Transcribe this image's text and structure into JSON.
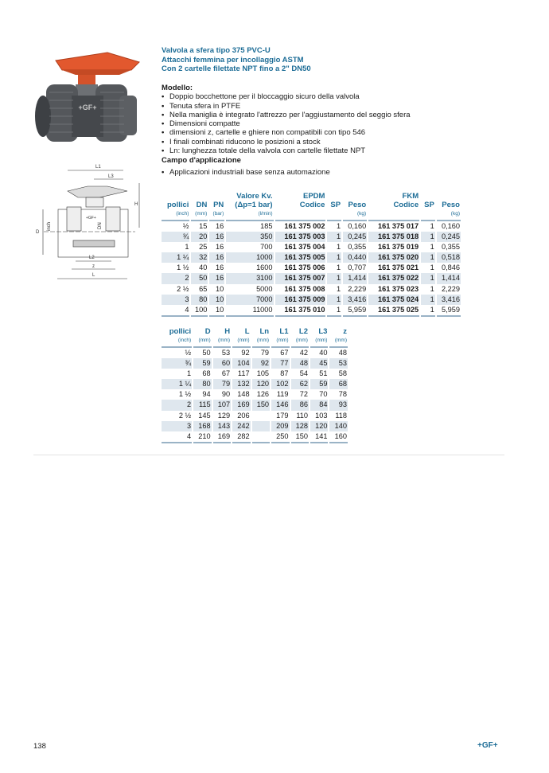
{
  "header": {
    "title_lines": [
      "Valvola a sfera tipo 375 PVC-U",
      "Attacchi femmina per incollaggio ASTM",
      "Con 2 cartelle filettate NPT fino a 2\" DN50"
    ]
  },
  "model": {
    "heading": "Modello:",
    "bullets": [
      "Doppio bocchettone per il bloccaggio sicuro della valvola",
      "Tenuta sfera in PTFE",
      "Nella maniglia è integrato l'attrezzo per l'aggiustamento del seggio sfera",
      "Dimensioni compatte",
      "dimensioni z, cartelle e ghiere non compatibili con tipo 546",
      "I finali combinati riducono le posizioni a stock",
      "Ln: lunghezza totale della valvola con cartelle filettate NPT"
    ]
  },
  "application": {
    "heading": "Campo d'applicazione",
    "bullets": [
      "Applicazioni industriali base senza automazione"
    ]
  },
  "drawing": {
    "labels": {
      "L1": "L1",
      "L3": "L3",
      "H": "H",
      "D": "D",
      "inch": "inch",
      "DN": "DN",
      "L2": "L2",
      "z": "z",
      "L": "L"
    },
    "logo_text": "+GF+"
  },
  "table1": {
    "headers": [
      {
        "label": "pollici",
        "unit": "(inch)"
      },
      {
        "label": "DN",
        "unit": "(mm)"
      },
      {
        "label": "PN",
        "unit": "(bar)"
      },
      {
        "label": "Valore Kv.",
        "label2": "(Δp=1 bar)",
        "unit": "(l/min)"
      },
      {
        "label": "EPDM",
        "label2": "Codice",
        "unit": ""
      },
      {
        "label": "SP",
        "unit": ""
      },
      {
        "label": "Peso",
        "unit": "(kg)"
      },
      {
        "label": "FKM",
        "label2": "Codice",
        "unit": ""
      },
      {
        "label": "SP",
        "unit": ""
      },
      {
        "label": "Peso",
        "unit": "(kg)"
      }
    ],
    "rows": [
      [
        "½",
        "15",
        "16",
        "185",
        "161 375 002",
        "1",
        "0,160",
        "161 375 017",
        "1",
        "0,160"
      ],
      [
        "¾",
        "20",
        "16",
        "350",
        "161 375 003",
        "1",
        "0,245",
        "161 375 018",
        "1",
        "0,245"
      ],
      [
        "1",
        "25",
        "16",
        "700",
        "161 375 004",
        "1",
        "0,355",
        "161 375 019",
        "1",
        "0,355"
      ],
      [
        "1 ¼",
        "32",
        "16",
        "1000",
        "161 375 005",
        "1",
        "0,440",
        "161 375 020",
        "1",
        "0,518"
      ],
      [
        "1 ½",
        "40",
        "16",
        "1600",
        "161 375 006",
        "1",
        "0,707",
        "161 375 021",
        "1",
        "0,846"
      ],
      [
        "2",
        "50",
        "16",
        "3100",
        "161 375 007",
        "1",
        "1,414",
        "161 375 022",
        "1",
        "1,414"
      ],
      [
        "2 ½",
        "65",
        "10",
        "5000",
        "161 375 008",
        "1",
        "2,229",
        "161 375 023",
        "1",
        "2,229"
      ],
      [
        "3",
        "80",
        "10",
        "7000",
        "161 375 009",
        "1",
        "3,416",
        "161 375 024",
        "1",
        "3,416"
      ],
      [
        "4",
        "100",
        "10",
        "11000",
        "161 375 010",
        "1",
        "5,959",
        "161 375 025",
        "1",
        "5,959"
      ]
    ]
  },
  "table2": {
    "headers": [
      {
        "label": "pollici",
        "unit": "(inch)"
      },
      {
        "label": "D",
        "unit": "(mm)"
      },
      {
        "label": "H",
        "unit": "(mm)"
      },
      {
        "label": "L",
        "unit": "(mm)"
      },
      {
        "label": "Ln",
        "unit": "(mm)"
      },
      {
        "label": "L1",
        "unit": "(mm)"
      },
      {
        "label": "L2",
        "unit": "(mm)"
      },
      {
        "label": "L3",
        "unit": "(mm)"
      },
      {
        "label": "z",
        "unit": "(mm)"
      }
    ],
    "rows": [
      [
        "½",
        "50",
        "53",
        "92",
        "79",
        "67",
        "42",
        "40",
        "48"
      ],
      [
        "¾",
        "59",
        "60",
        "104",
        "92",
        "77",
        "48",
        "45",
        "53"
      ],
      [
        "1",
        "68",
        "67",
        "117",
        "105",
        "87",
        "54",
        "51",
        "58"
      ],
      [
        "1 ¼",
        "80",
        "79",
        "132",
        "120",
        "102",
        "62",
        "59",
        "68"
      ],
      [
        "1 ½",
        "94",
        "90",
        "148",
        "126",
        "119",
        "72",
        "70",
        "78"
      ],
      [
        "2",
        "115",
        "107",
        "169",
        "150",
        "146",
        "86",
        "84",
        "93"
      ],
      [
        "2 ½",
        "145",
        "129",
        "206",
        "",
        "179",
        "110",
        "103",
        "118"
      ],
      [
        "3",
        "168",
        "143",
        "242",
        "",
        "209",
        "128",
        "120",
        "140"
      ],
      [
        "4",
        "210",
        "169",
        "282",
        "",
        "250",
        "150",
        "141",
        "160"
      ]
    ]
  },
  "footer": {
    "page_number": "138",
    "logo": "+GF+"
  },
  "colors": {
    "accent": "#1c6c96",
    "row_shade": "#dfe7ee",
    "handle": "#e2582e",
    "valve_body": "#4a4d50"
  }
}
